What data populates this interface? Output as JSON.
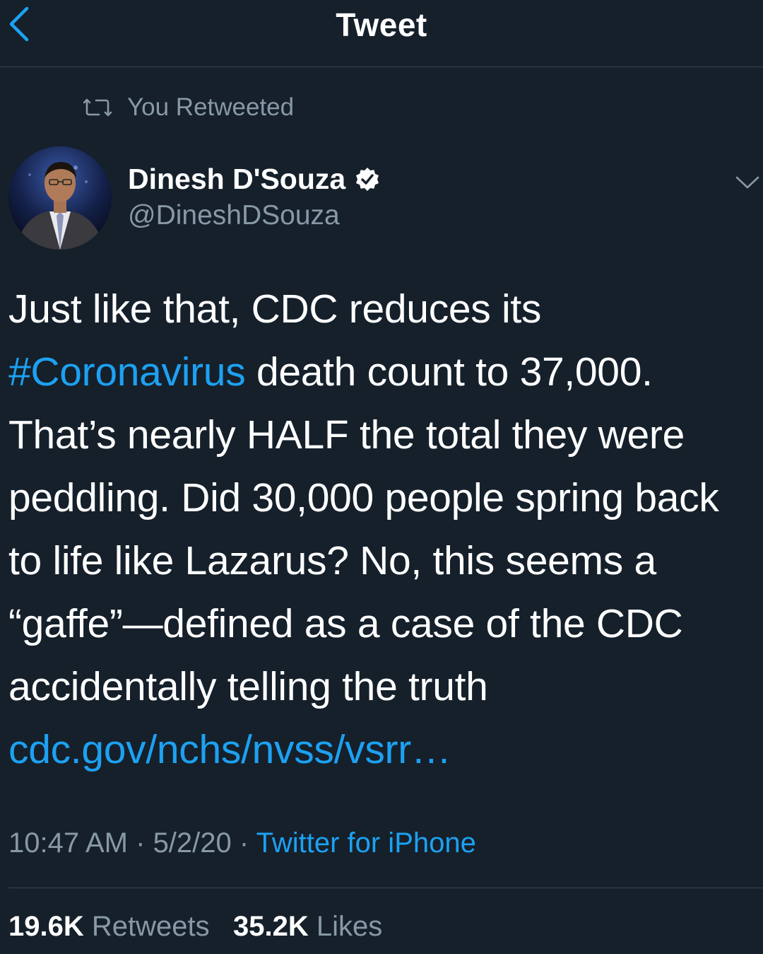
{
  "header": {
    "title": "Tweet",
    "back_icon": "chevron-left-icon"
  },
  "retweet_context": {
    "icon": "retweet-icon",
    "text": "You Retweeted"
  },
  "author": {
    "name": "Dinesh D'Souza",
    "handle": "@DineshDSouza",
    "verified": true,
    "verified_icon": "verified-badge-icon",
    "caret_icon": "chevron-down-icon"
  },
  "tweet": {
    "text_part1": "Just like that, CDC reduces its ",
    "hashtag": "#Coronavirus",
    "text_part2": " death count to 37,000. That’s nearly HALF the total they were peddling. Did 30,000 people spring back to life like Lazarus? No, this seems a “gaffe”—defined as a case of the CDC accidentally telling the truth ",
    "link": "cdc.gov/nchs/nvss/vsrr…"
  },
  "meta": {
    "time": "10:47 AM",
    "separator": " · ",
    "date": "5/2/20",
    "source": "Twitter for iPhone"
  },
  "stats": {
    "retweets_count": "19.6K",
    "retweets_label": "Retweets",
    "likes_count": "35.2K",
    "likes_label": "Likes"
  },
  "colors": {
    "background": "#15202b",
    "accent": "#1da1f2",
    "secondary_text": "#8899a6",
    "divider": "#38444d"
  }
}
